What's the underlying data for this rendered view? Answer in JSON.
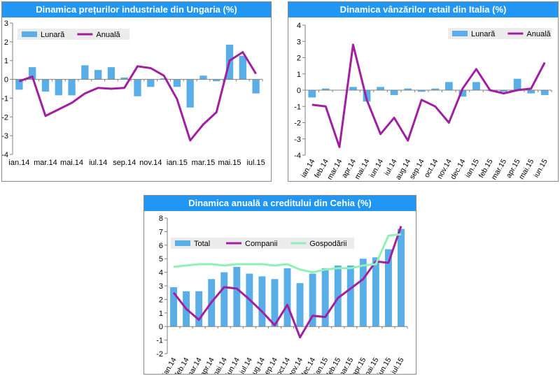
{
  "chart_data": [
    {
      "type": "bar",
      "title": "Dinamica prețurilor industriale din Ungaria (%)",
      "categories": [
        "ian.14",
        "feb.14",
        "mar.14",
        "apr.14",
        "mai.14",
        "iun.14",
        "iul.14",
        "aug.14",
        "sep.14",
        "oct.14",
        "nov.14",
        "dec.14",
        "ian.15",
        "feb.15",
        "mar.15",
        "apr.15",
        "mai.15",
        "iun.15",
        "iul.15"
      ],
      "tick_labels": [
        "ian.14",
        "mar.14",
        "mai.14",
        "iul.14",
        "sep.14",
        "nov.14",
        "ian.15",
        "mar.15",
        "mai.15",
        "iul.15"
      ],
      "ylim": [
        -4,
        3
      ],
      "yticks": [
        -4,
        -3,
        -2,
        -1,
        0,
        1,
        2,
        3
      ],
      "series": [
        {
          "name": "Lunară",
          "type": "bar",
          "color": "#5aaee8",
          "values": [
            -0.55,
            0.65,
            -0.65,
            -0.85,
            -0.85,
            0.75,
            0.5,
            0.65,
            0.1,
            -0.9,
            -0.4,
            0.05,
            -0.4,
            -1.5,
            0.2,
            -0.1,
            1.85,
            1.25,
            -0.75
          ]
        },
        {
          "name": "Anuală",
          "type": "line",
          "color": "#a020a0",
          "values": [
            -0.1,
            0.15,
            -1.95,
            -1.6,
            -1.25,
            -0.75,
            -0.45,
            -0.5,
            -0.45,
            0.7,
            0.6,
            0.2,
            -1.05,
            -3.25,
            -2.4,
            -1.75,
            1.0,
            1.45,
            0.3
          ]
        }
      ],
      "legend": "top-left",
      "grid": false
    },
    {
      "type": "bar",
      "title": "Dinamica vânzărilor retail din Italia (%)",
      "categories": [
        "ian.14",
        "feb.14",
        "mar.14",
        "apr.14",
        "mai.14",
        "iun.14",
        "iul.14",
        "aug.14",
        "sep.14",
        "oct.14",
        "nov.14",
        "dec.14",
        "ian.15",
        "feb.15",
        "mar.15",
        "apr.15",
        "mai.15",
        "iun.15"
      ],
      "ylim": [
        -4,
        4
      ],
      "yticks": [
        -4,
        -3,
        -2,
        -1,
        0,
        1,
        2,
        3,
        4
      ],
      "series": [
        {
          "name": "Lunară",
          "type": "bar",
          "color": "#5aaee8",
          "values": [
            -0.45,
            0.1,
            0.0,
            0.2,
            -0.7,
            0.2,
            -0.3,
            0.1,
            -0.1,
            0.1,
            0.5,
            -0.4,
            0.5,
            -0.05,
            -0.1,
            0.7,
            -0.2,
            -0.3
          ]
        },
        {
          "name": "Anuală",
          "type": "line",
          "color": "#a020a0",
          "values": [
            -0.9,
            -1.0,
            -3.5,
            2.8,
            -0.6,
            -2.7,
            -1.7,
            -3.1,
            -0.6,
            -1.0,
            -2.0,
            0.1,
            1.3,
            0.0,
            -0.2,
            0.0,
            0.1,
            1.7
          ]
        }
      ],
      "legend": "top-right",
      "grid": false
    },
    {
      "type": "bar",
      "title": "Dinamica anuală a creditului din Cehia (%)",
      "categories": [
        "ian.14",
        "feb.14",
        "mar.14",
        "apr.14",
        "mai.14",
        "iun.14",
        "iul.14",
        "aug.14",
        "sep.14",
        "oct.14",
        "nov.14",
        "dec.14",
        "ian.15",
        "feb.15",
        "mar.15",
        "apr.15",
        "mai.15",
        "iun.15",
        "iul.15"
      ],
      "ylim": [
        -2,
        8
      ],
      "yticks": [
        -2,
        -1,
        0,
        1,
        2,
        3,
        4,
        5,
        6,
        7,
        8
      ],
      "series": [
        {
          "name": "Total",
          "type": "bar",
          "color": "#5aaee8",
          "values": [
            2.9,
            2.6,
            2.6,
            3.5,
            4.0,
            4.4,
            3.9,
            3.7,
            3.5,
            4.3,
            3.2,
            3.9,
            4.3,
            4.5,
            4.5,
            5.0,
            5.1,
            5.7,
            7.2
          ]
        },
        {
          "name": "Companii",
          "type": "line",
          "color": "#a020a0",
          "values": [
            2.5,
            1.3,
            0.5,
            1.8,
            2.9,
            2.8,
            2.0,
            1.1,
            0.1,
            1.6,
            -0.8,
            0.8,
            0.7,
            2.1,
            2.8,
            3.5,
            4.8,
            4.7,
            7.4
          ]
        },
        {
          "name": "Gospodării",
          "type": "line",
          "color": "#90f0b8",
          "values": [
            4.4,
            4.5,
            4.6,
            4.6,
            4.5,
            4.6,
            4.6,
            4.6,
            4.5,
            4.6,
            4.2,
            4.0,
            4.2,
            4.3,
            4.3,
            4.5,
            4.6,
            6.7,
            6.8
          ]
        }
      ],
      "legend": "top",
      "grid": false
    }
  ]
}
